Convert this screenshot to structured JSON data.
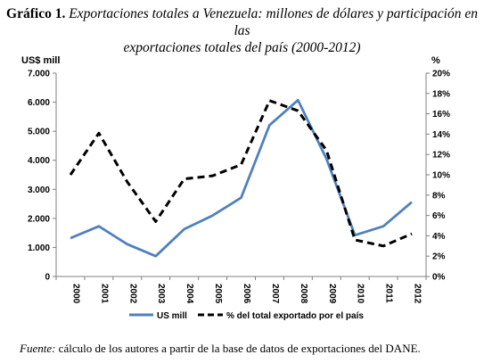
{
  "caption": {
    "label": "Gráfico 1.",
    "line1": "Exportaciones totales a Venezuela: millones de dólares y participación en las",
    "line2": "exportaciones totales del país (2000-2012)"
  },
  "source": {
    "label": "Fuente:",
    "text": " cálculo de los autores a partir de la base de datos de exportaciones del DANE."
  },
  "colors": {
    "series1": "#4F81BD",
    "series2": "#000000",
    "axis": "#808080"
  },
  "chart_data": {
    "type": "line",
    "title": "",
    "x": [
      "2000",
      "2001",
      "2002",
      "2003",
      "2004",
      "2005",
      "2006",
      "2007",
      "2008",
      "2009",
      "2010",
      "2011",
      "2012"
    ],
    "y_left": {
      "label": "US$ mill",
      "ylim": [
        0,
        7000
      ],
      "ticks": [
        "0",
        "1.000",
        "2.000",
        "3.000",
        "4.000",
        "5.000",
        "6.000",
        "7.000"
      ]
    },
    "y_right": {
      "label": "%",
      "ylim": [
        0,
        20
      ],
      "ticks": [
        "0%",
        "2%",
        "4%",
        "6%",
        "8%",
        "10%",
        "12%",
        "14%",
        "16%",
        "18%",
        "20%"
      ]
    },
    "grid": false,
    "legend_position": "bottom",
    "series": [
      {
        "name": "US mill",
        "axis": "left",
        "style": "solid",
        "values": [
          1320,
          1730,
          1110,
          700,
          1630,
          2100,
          2710,
          5210,
          6070,
          4050,
          1420,
          1730,
          2560
        ]
      },
      {
        "name": "% del total  exportado por el país",
        "axis": "right",
        "style": "dashed",
        "values": [
          10.0,
          14.1,
          9.3,
          5.4,
          9.6,
          9.9,
          11.0,
          17.3,
          16.3,
          12.4,
          3.6,
          3.0,
          4.2
        ]
      }
    ]
  }
}
